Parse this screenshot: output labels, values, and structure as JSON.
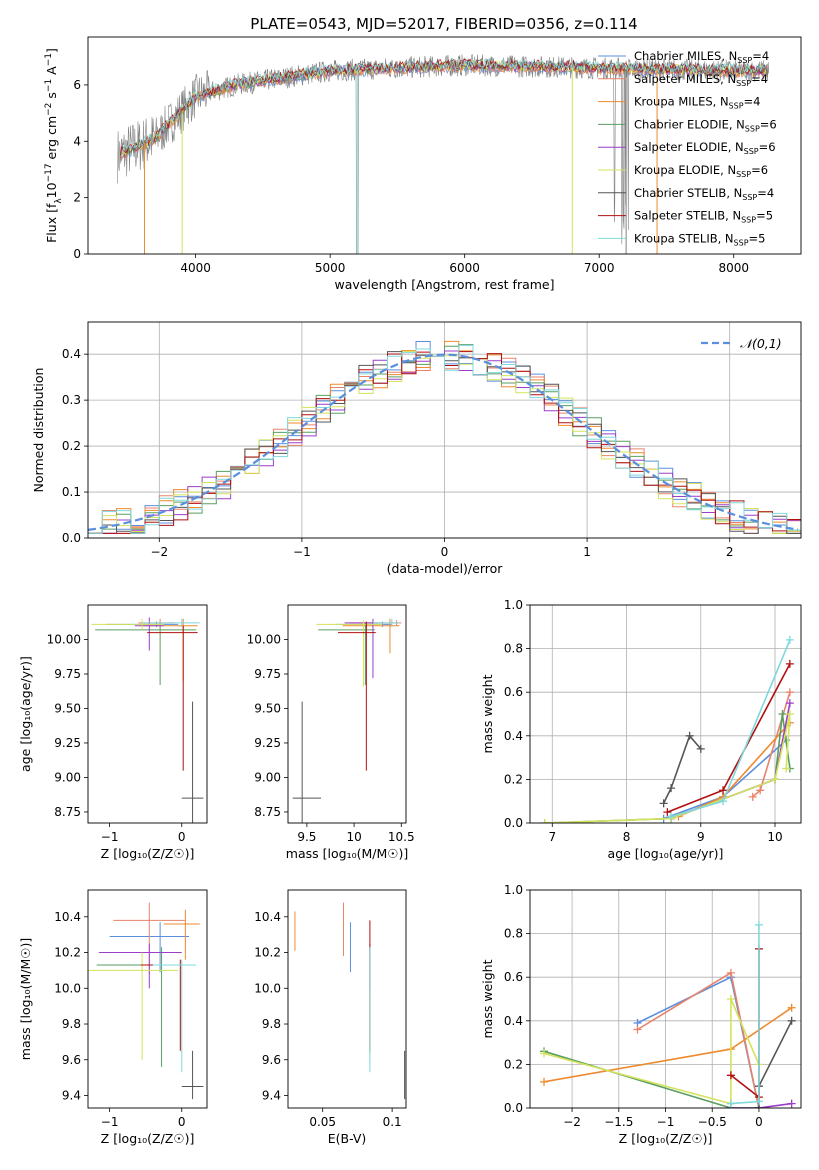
{
  "figure": {
    "title": "PLATE=0543, MJD=52017, FIBERID=0356, z=0.114"
  },
  "model_colors": {
    "Chabrier MILES": "#5b8fde",
    "Salpeter MILES": "#e8836a",
    "Kroupa MILES": "#ee8a2f",
    "Chabrier ELODIE": "#5a9e60",
    "Salpeter ELODIE": "#9b3fc9",
    "Kroupa ELODIE": "#d4e35a",
    "Chabrier STELIB": "#555555",
    "Salpeter STELIB": "#b01010",
    "Kroupa STELIB": "#7fd8dc"
  },
  "chart_data": [
    {
      "id": "spectrum",
      "type": "line",
      "title": "PLATE=0543, MJD=52017, FIBERID=0356, z=0.114",
      "xlabel": "wavelength [Angstrom, rest frame]",
      "ylabel": "Flux [f_λ 10^-17 erg cm^-2 s^-1 A^-1]",
      "xlim": [
        3200,
        8500
      ],
      "ylim": [
        0,
        7.7
      ],
      "xticks": [
        4000,
        5000,
        6000,
        7000,
        8000
      ],
      "yticks": [
        0,
        2,
        4,
        6
      ],
      "grid": false,
      "legend_position": "top-right",
      "legend": [
        {
          "name": "Chabrier MILES",
          "nssp": "4"
        },
        {
          "name": "Salpeter MILES",
          "nssp": "4"
        },
        {
          "name": "Kroupa MILES",
          "nssp": "4"
        },
        {
          "name": "Chabrier ELODIE",
          "nssp": "6"
        },
        {
          "name": "Salpeter ELODIE",
          "nssp": "6"
        },
        {
          "name": "Kroupa ELODIE",
          "nssp": "6"
        },
        {
          "name": "Chabrier STELIB",
          "nssp": "4"
        },
        {
          "name": "Salpeter STELIB",
          "nssp": "5"
        },
        {
          "name": "Kroupa STELIB",
          "nssp": "5"
        }
      ],
      "continuum": [
        [
          3420,
          3.5
        ],
        [
          3700,
          4.1
        ],
        [
          4000,
          5.6
        ],
        [
          4300,
          6.0
        ],
        [
          5000,
          6.5
        ],
        [
          6000,
          6.7
        ],
        [
          7000,
          6.6
        ],
        [
          8000,
          6.5
        ],
        [
          8260,
          6.5
        ]
      ]
    },
    {
      "id": "residuals",
      "type": "histogram",
      "xlabel": "(data-model)/error",
      "ylabel": "Normed distribution",
      "xlim": [
        -2.5,
        2.5
      ],
      "ylim": [
        0,
        0.47
      ],
      "xticks": [
        -2,
        -1,
        0,
        1,
        2
      ],
      "yticks": [
        0.0,
        0.1,
        0.2,
        0.3,
        0.4
      ],
      "grid": true,
      "legend_position": "top-right",
      "legend": [
        "𝒩(0,1)"
      ],
      "bin_width": 0.1,
      "gaussian": {
        "mean": 0,
        "sigma": 1
      }
    },
    {
      "id": "age-vs-Z",
      "type": "errorbar",
      "xlabel": "Z [log10(Z/Z☉)]",
      "ylabel": "age [log10(age/yr)]",
      "xlim": [
        -1.3,
        0.35
      ],
      "ylim": [
        8.67,
        10.25
      ],
      "xticks": [
        -1,
        0
      ],
      "yticks": [
        8.75,
        9.0,
        9.25,
        9.5,
        9.75,
        10.0
      ],
      "grid": false,
      "points": [
        {
          "model": "Chabrier MILES",
          "x": -0.35,
          "xerr": [
            0.7,
            0.3
          ],
          "y": 10.11,
          "yerr": [
            0.02,
            0.02
          ]
        },
        {
          "model": "Salpeter MILES",
          "x": -0.3,
          "xerr": [
            0.3,
            0.2
          ],
          "y": 10.12,
          "yerr": [
            0.03,
            0.03
          ]
        },
        {
          "model": "Kroupa MILES",
          "x": 0.02,
          "xerr": [
            0.6,
            0.2
          ],
          "y": 10.1,
          "yerr": [
            0.4,
            0.05
          ]
        },
        {
          "model": "Chabrier ELODIE",
          "x": -0.3,
          "xerr": [
            0.9,
            0.5
          ],
          "y": 10.07,
          "yerr": [
            0.4,
            0.05
          ]
        },
        {
          "model": "Salpeter ELODIE",
          "x": -0.45,
          "xerr": [
            0.2,
            0.2
          ],
          "y": 10.1,
          "yerr": [
            0.18,
            0.06
          ]
        },
        {
          "model": "Kroupa ELODIE",
          "x": -0.55,
          "xerr": [
            0.7,
            0.3
          ],
          "y": 10.11,
          "yerr": [
            0.04,
            0.04
          ]
        },
        {
          "model": "Chabrier STELIB",
          "x": 0.15,
          "xerr": [
            0.15,
            0.15
          ],
          "y": 8.85,
          "yerr": [
            0.3,
            0.7
          ]
        },
        {
          "model": "Salpeter STELIB",
          "x": 0.02,
          "xerr": [
            0.5,
            0.2
          ],
          "y": 10.05,
          "yerr": [
            1.0,
            0.05
          ]
        },
        {
          "model": "Kroupa STELIB",
          "x": 0.0,
          "xerr": [
            0.55,
            0.25
          ],
          "y": 10.12,
          "yerr": [
            0.03,
            0.03
          ]
        }
      ]
    },
    {
      "id": "age-vs-mass",
      "type": "errorbar",
      "xlabel": "mass [log10(M/M☉)]",
      "ylabel": "",
      "xlim": [
        9.3,
        10.55
      ],
      "ylim": [
        8.67,
        10.25
      ],
      "xticks": [
        9.5,
        10.0,
        10.5
      ],
      "yticks": [
        8.75,
        9.0,
        9.25,
        9.5,
        9.75,
        10.0
      ],
      "grid": false,
      "points": [
        {
          "model": "Chabrier MILES",
          "x": 10.3,
          "xerr": [
            0.5,
            0.1
          ],
          "y": 10.11,
          "yerr": [
            0.02,
            0.02
          ]
        },
        {
          "model": "Salpeter MILES",
          "x": 10.45,
          "xerr": [
            0.5,
            0.05
          ],
          "y": 10.12,
          "yerr": [
            0.02,
            0.02
          ]
        },
        {
          "model": "Kroupa MILES",
          "x": 10.38,
          "xerr": [
            0.5,
            0.1
          ],
          "y": 10.1,
          "yerr": [
            0.2,
            0.05
          ]
        },
        {
          "model": "Chabrier ELODIE",
          "x": 10.12,
          "xerr": [
            0.5,
            0.1
          ],
          "y": 10.07,
          "yerr": [
            0.4,
            0.05
          ]
        },
        {
          "model": "Salpeter ELODIE",
          "x": 10.2,
          "xerr": [
            0.3,
            0.05
          ],
          "y": 10.12,
          "yerr": [
            0.4,
            0.03
          ]
        },
        {
          "model": "Kroupa ELODIE",
          "x": 10.1,
          "xerr": [
            0.5,
            0.2
          ],
          "y": 10.11,
          "yerr": [
            0.45,
            0.03
          ]
        },
        {
          "model": "Chabrier STELIB",
          "x": 9.45,
          "xerr": [
            0.1,
            0.2
          ],
          "y": 8.85,
          "yerr": [
            0.3,
            0.7
          ]
        },
        {
          "model": "Salpeter STELIB",
          "x": 10.13,
          "xerr": [
            0.3,
            0.1
          ],
          "y": 10.05,
          "yerr": [
            1.0,
            0.08
          ]
        },
        {
          "model": "Kroupa STELIB",
          "x": 10.4,
          "xerr": [
            0.2,
            0.08
          ],
          "y": 10.12,
          "yerr": [
            0.03,
            0.03
          ]
        }
      ]
    },
    {
      "id": "weight-vs-age",
      "type": "line",
      "xlabel": "age [log10(age/yr)]",
      "ylabel": "mass weight",
      "xlim": [
        6.7,
        10.35
      ],
      "ylim": [
        0,
        1
      ],
      "xticks": [
        7,
        8,
        9,
        10
      ],
      "yticks": [
        0.0,
        0.2,
        0.4,
        0.6,
        0.8,
        1.0
      ],
      "grid": true,
      "series": [
        {
          "model": "Chabrier MILES",
          "x": [
            8.5,
            9.3,
            10.15
          ],
          "y": [
            0.02,
            0.12,
            0.38
          ]
        },
        {
          "model": "Salpeter MILES",
          "x": [
            9.7,
            9.8,
            10.2
          ],
          "y": [
            0.12,
            0.15,
            0.6
          ]
        },
        {
          "model": "Kroupa MILES",
          "x": [
            8.7,
            9.3,
            10.2
          ],
          "y": [
            0.03,
            0.12,
            0.46
          ]
        },
        {
          "model": "Chabrier ELODIE",
          "x": [
            6.9,
            8.6,
            10.0,
            10.1,
            10.2
          ],
          "y": [
            0.0,
            0.02,
            0.2,
            0.5,
            0.25
          ]
        },
        {
          "model": "Salpeter ELODIE",
          "x": [
            8.6,
            10.0,
            10.2
          ],
          "y": [
            0.02,
            0.2,
            0.55
          ]
        },
        {
          "model": "Kroupa ELODIE",
          "x": [
            6.9,
            8.6,
            10.0,
            10.2,
            10.15
          ],
          "y": [
            0.0,
            0.02,
            0.2,
            0.5,
            0.25
          ]
        },
        {
          "model": "Chabrier STELIB",
          "x": [
            8.5,
            8.6,
            8.85,
            9.0
          ],
          "y": [
            0.09,
            0.16,
            0.4,
            0.34
          ]
        },
        {
          "model": "Salpeter STELIB",
          "x": [
            8.55,
            9.3,
            10.2
          ],
          "y": [
            0.05,
            0.15,
            0.73
          ]
        },
        {
          "model": "Kroupa STELIB",
          "x": [
            8.6,
            9.3,
            10.2
          ],
          "y": [
            0.03,
            0.1,
            0.84
          ]
        }
      ]
    },
    {
      "id": "mass-vs-Z",
      "type": "errorbar",
      "xlabel": "Z [log10(Z/Z☉)]",
      "ylabel": "mass [log10(M/M☉)]",
      "xlim": [
        -1.3,
        0.35
      ],
      "ylim": [
        9.33,
        10.55
      ],
      "xticks": [
        -1,
        0
      ],
      "yticks": [
        9.4,
        9.6,
        9.8,
        10.0,
        10.2,
        10.4
      ],
      "grid": false,
      "points": [
        {
          "model": "Chabrier MILES",
          "x": -0.3,
          "xerr": [
            0.7,
            0.4
          ],
          "y": 10.29,
          "yerr": [
            0.2,
            0.08
          ]
        },
        {
          "model": "Salpeter MILES",
          "x": -0.45,
          "xerr": [
            0.5,
            0.5
          ],
          "y": 10.38,
          "yerr": [
            0.3,
            0.1
          ]
        },
        {
          "model": "Kroupa MILES",
          "x": 0.05,
          "xerr": [
            0.3,
            0.2
          ],
          "y": 10.36,
          "yerr": [
            0.2,
            0.08
          ]
        },
        {
          "model": "Chabrier ELODIE",
          "x": -0.28,
          "xerr": [
            0.9,
            0.4
          ],
          "y": 10.13,
          "yerr": [
            0.57,
            0.1
          ]
        },
        {
          "model": "Salpeter ELODIE",
          "x": -0.45,
          "xerr": [
            0.7,
            0.45
          ],
          "y": 10.2,
          "yerr": [
            0.2,
            0.05
          ]
        },
        {
          "model": "Kroupa ELODIE",
          "x": -0.55,
          "xerr": [
            0.75,
            0.5
          ],
          "y": 10.1,
          "yerr": [
            0.5,
            0.1
          ]
        },
        {
          "model": "Chabrier STELIB",
          "x": 0.15,
          "xerr": [
            0.15,
            0.15
          ],
          "y": 9.45,
          "yerr": [
            0.07,
            0.2
          ]
        },
        {
          "model": "Salpeter STELIB",
          "x": -0.02,
          "xerr": [
            0.55,
            0.2
          ],
          "y": 10.13,
          "yerr": [
            0.48,
            0.03
          ]
        },
        {
          "model": "Kroupa STELIB",
          "x": 0.0,
          "xerr": [
            0.4,
            0.2
          ],
          "y": 10.13,
          "yerr": [
            0.6,
            0.03
          ]
        }
      ]
    },
    {
      "id": "mass-vs-EBV",
      "type": "errorbar",
      "xlabel": "E(B-V)",
      "ylabel": "",
      "xlim": [
        0.025,
        0.11
      ],
      "ylim": [
        9.33,
        10.55
      ],
      "xticks": [
        0.05,
        0.1
      ],
      "yticks": [
        9.4,
        9.6,
        9.8,
        10.0,
        10.2,
        10.4
      ],
      "grid": false,
      "points": [
        {
          "model": "Chabrier MILES",
          "x": 0.07,
          "y": 10.29,
          "yerr": [
            0.2,
            0.08
          ]
        },
        {
          "model": "Salpeter MILES",
          "x": 0.065,
          "y": 10.38,
          "yerr": [
            0.2,
            0.1
          ]
        },
        {
          "model": "Kroupa MILES",
          "x": 0.03,
          "y": 10.36,
          "yerr": [
            0.15,
            0.07
          ]
        },
        {
          "model": "Chabrier ELODIE",
          "x": 0.084,
          "y": 10.13,
          "yerr": [
            0.5,
            0.1
          ]
        },
        {
          "model": "Salpeter ELODIE",
          "x": 0.084,
          "y": 10.2,
          "yerr": [
            0.2,
            0.05
          ]
        },
        {
          "model": "Kroupa ELODIE",
          "x": 0.084,
          "y": 10.1,
          "yerr": [
            0.5,
            0.1
          ]
        },
        {
          "model": "Chabrier STELIB",
          "x": 0.109,
          "y": 9.45,
          "yerr": [
            0.07,
            0.2
          ]
        },
        {
          "model": "Salpeter STELIB",
          "x": 0.084,
          "y": 10.13,
          "yerr": [
            0.48,
            0.25
          ]
        },
        {
          "model": "Kroupa STELIB",
          "x": 0.084,
          "y": 10.13,
          "yerr": [
            0.6,
            0.1
          ]
        }
      ]
    },
    {
      "id": "weight-vs-Z",
      "type": "line",
      "xlabel": "Z [log10(Z/Z☉)]",
      "ylabel": "mass weight",
      "xlim": [
        -2.45,
        0.45
      ],
      "ylim": [
        0,
        1
      ],
      "xticks": [
        -2.0,
        -1.5,
        -1.0,
        -0.5,
        0.0
      ],
      "yticks": [
        0.0,
        0.2,
        0.4,
        0.6,
        0.8,
        1.0
      ],
      "grid": true,
      "series": [
        {
          "model": "Chabrier MILES",
          "x": [
            -1.3,
            -0.3,
            0.0
          ],
          "y": [
            0.39,
            0.6,
            0.0
          ]
        },
        {
          "model": "Salpeter MILES",
          "x": [
            -1.3,
            -0.3,
            0.0
          ],
          "y": [
            0.36,
            0.62,
            0.0
          ]
        },
        {
          "model": "Kroupa MILES",
          "x": [
            -2.3,
            -0.3,
            0.35
          ],
          "y": [
            0.12,
            0.27,
            0.46
          ]
        },
        {
          "model": "Chabrier ELODIE",
          "x": [
            -2.3,
            -0.3,
            0.0
          ],
          "y": [
            0.26,
            0.0,
            0.0
          ]
        },
        {
          "model": "Salpeter ELODIE",
          "x": [
            -0.3,
            0.0,
            0.35
          ],
          "y": [
            0.0,
            0.0,
            0.02
          ]
        },
        {
          "model": "Kroupa ELODIE",
          "x": [
            -2.3,
            -0.3,
            -0.3,
            0.0
          ],
          "y": [
            0.25,
            0.02,
            0.5,
            0.2
          ]
        },
        {
          "model": "Chabrier STELIB",
          "x": [
            0.35,
            0.0,
            0.0
          ],
          "y": [
            0.4,
            0.1,
            0.0
          ]
        },
        {
          "model": "Salpeter STELIB",
          "x": [
            -0.3,
            0.0,
            0.0
          ],
          "y": [
            0.15,
            0.05,
            0.73
          ]
        },
        {
          "model": "Kroupa STELIB",
          "x": [
            -0.3,
            0.0,
            0.0
          ],
          "y": [
            0.02,
            0.03,
            0.84
          ]
        }
      ]
    }
  ]
}
